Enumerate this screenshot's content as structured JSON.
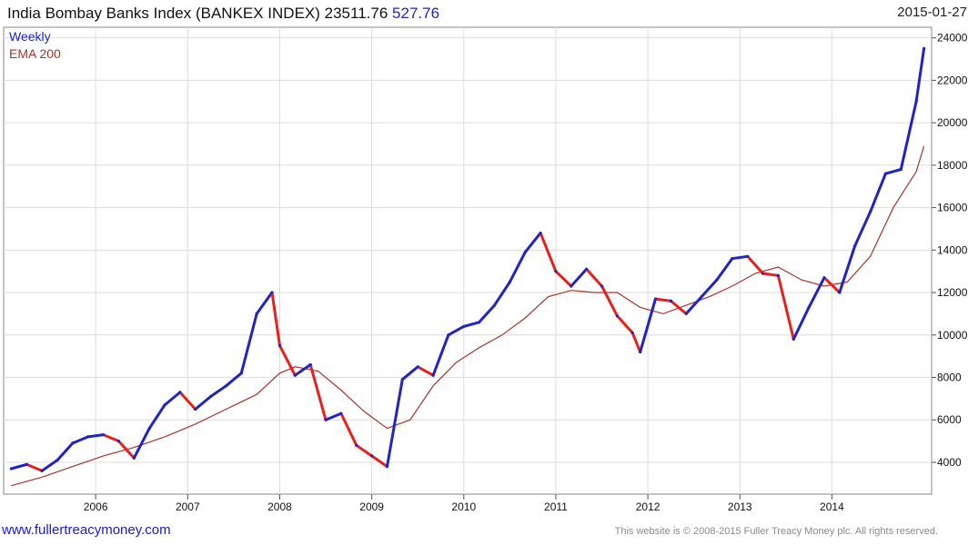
{
  "header": {
    "title": "India Bombay Banks Index (BANKEX INDEX) 23511.76",
    "change": "527.76",
    "date": "2015-01-27"
  },
  "footer": {
    "website": "www.fullertreacymoney.com",
    "copyright": "This website is © 2008-2015 Fuller Treacy Money plc. All rights reserved."
  },
  "chart_data": {
    "type": "line",
    "series": [
      {
        "name": "Weekly",
        "color": "#1f23c8",
        "down_color": "#e8201c",
        "x": [
          "2005-02",
          "2005-04",
          "2005-06",
          "2005-08",
          "2005-10",
          "2005-12",
          "2006-02",
          "2006-04",
          "2006-06",
          "2006-08",
          "2006-10",
          "2006-12",
          "2007-02",
          "2007-04",
          "2007-06",
          "2007-08",
          "2007-10",
          "2007-12",
          "2008-01",
          "2008-03",
          "2008-05",
          "2008-07",
          "2008-09",
          "2008-11",
          "2009-01",
          "2009-03",
          "2009-05",
          "2009-07",
          "2009-09",
          "2009-11",
          "2010-01",
          "2010-03",
          "2010-05",
          "2010-07",
          "2010-09",
          "2010-11",
          "2011-01",
          "2011-03",
          "2011-05",
          "2011-07",
          "2011-09",
          "2011-11",
          "2011-12",
          "2012-02",
          "2012-04",
          "2012-06",
          "2012-08",
          "2012-10",
          "2012-12",
          "2013-02",
          "2013-04",
          "2013-06",
          "2013-08",
          "2013-10",
          "2013-12",
          "2014-02",
          "2014-04",
          "2014-06",
          "2014-08",
          "2014-10",
          "2014-12",
          "2015-01"
        ],
        "y": [
          3700,
          3900,
          3600,
          4100,
          4900,
          5200,
          5300,
          5000,
          4200,
          5600,
          6700,
          7300,
          6500,
          7100,
          7600,
          8200,
          11000,
          12000,
          9500,
          8100,
          8600,
          6000,
          6300,
          4800,
          4300,
          3800,
          7900,
          8500,
          8100,
          10000,
          10400,
          10600,
          11400,
          12500,
          13900,
          14800,
          13000,
          12300,
          13100,
          12300,
          10900,
          10100,
          9200,
          11700,
          11600,
          11000,
          11800,
          12600,
          13600,
          13700,
          12900,
          12800,
          9800,
          11300,
          12700,
          12000,
          14200,
          15800,
          17600,
          17800,
          21000,
          23500
        ]
      },
      {
        "name": "EMA 200",
        "color": "#a8342c",
        "x": [
          "2005-02",
          "2005-06",
          "2005-10",
          "2006-02",
          "2006-06",
          "2006-10",
          "2007-02",
          "2007-06",
          "2007-10",
          "2008-01",
          "2008-03",
          "2008-06",
          "2008-09",
          "2008-12",
          "2009-03",
          "2009-06",
          "2009-09",
          "2009-12",
          "2010-03",
          "2010-06",
          "2010-09",
          "2010-12",
          "2011-03",
          "2011-06",
          "2011-09",
          "2011-12",
          "2012-03",
          "2012-06",
          "2012-09",
          "2012-12",
          "2013-03",
          "2013-06",
          "2013-09",
          "2013-12",
          "2014-03",
          "2014-06",
          "2014-09",
          "2014-12",
          "2015-01"
        ],
        "y": [
          2900,
          3300,
          3800,
          4300,
          4700,
          5200,
          5800,
          6500,
          7200,
          8200,
          8500,
          8300,
          7400,
          6400,
          5600,
          6000,
          7600,
          8700,
          9400,
          10000,
          10800,
          11800,
          12100,
          12000,
          12000,
          11300,
          11000,
          11400,
          11800,
          12300,
          12900,
          13200,
          12600,
          12300,
          12500,
          13700,
          16000,
          17700,
          18900
        ]
      }
    ],
    "ylim": [
      2500,
      24500
    ],
    "yticks": [
      4000,
      6000,
      8000,
      10000,
      12000,
      14000,
      16000,
      18000,
      20000,
      22000,
      24000
    ],
    "xticks": [
      "2006",
      "2007",
      "2008",
      "2009",
      "2010",
      "2011",
      "2012",
      "2013",
      "2014"
    ],
    "xlim": [
      "2005-01",
      "2015-02"
    ],
    "grid": true,
    "legend_position": "top-left",
    "axis_side": "right"
  }
}
